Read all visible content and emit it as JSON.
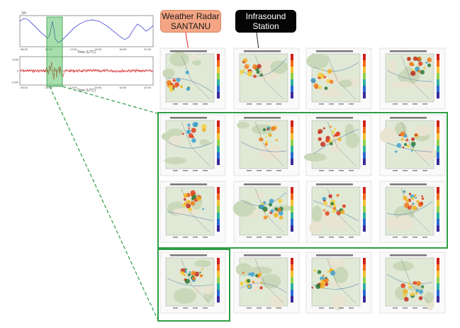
{
  "callouts": {
    "radar_line1": "Weather Radar",
    "radar_line2": "SANTANU",
    "infra_line1": "Infrasound",
    "infra_line2": "Station"
  },
  "top_plot": {
    "exponent_label": "10⁴",
    "x_ticks": [
      "08:00",
      "10:00",
      "12:00",
      "15:00",
      "18:00",
      "21:00"
    ],
    "xlabel": "Time (UTC)"
  },
  "bottom_plot": {
    "y_ticks": [
      "0.005",
      "0",
      "-0.005"
    ],
    "x_ticks": [
      "08:00",
      "10:00",
      "12:00",
      "15:00",
      "18:00",
      "21:00"
    ],
    "xlabel": "Time (UTC)"
  },
  "colors": {
    "highlight_green": "#39b54a",
    "box_green": "#2e9e45",
    "signal_red": "#d62020",
    "line_blue": "#5a5ad6"
  }
}
